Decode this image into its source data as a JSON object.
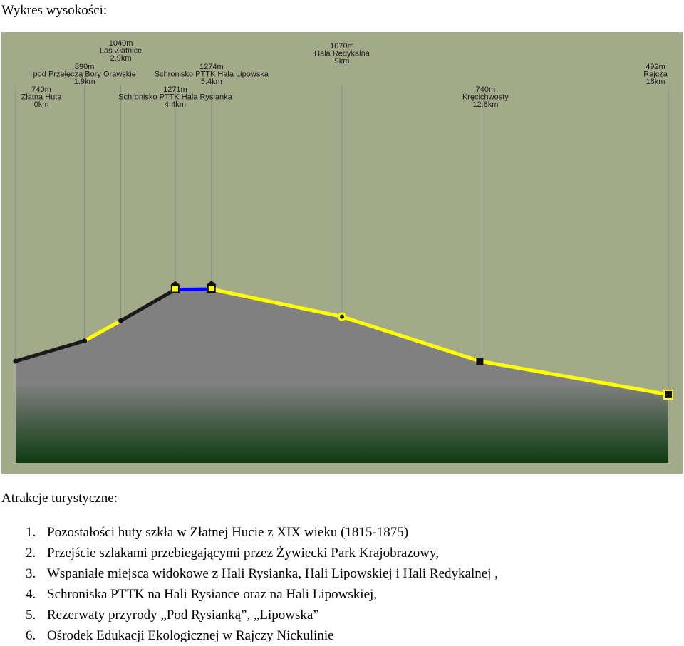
{
  "heading": "Wykres wysokości:",
  "section_title": "Atrakcje turystyczne:",
  "colors": {
    "background": "#a3aa8a",
    "terrain_top": "#808080",
    "terrain_bottom": "#0e3a10",
    "trail_yellow": "#ffff00",
    "trail_black": "#1a1a1a",
    "trail_blue": "#0000ff",
    "guide_line": "#8a8f80"
  },
  "chart_data": {
    "type": "area",
    "x_unit": "km",
    "y_unit": "m",
    "points": [
      {
        "name": "Złatna Huta",
        "elevation_label": "740m",
        "distance_label": "0km",
        "km": 0,
        "m": 740,
        "marker": "dot"
      },
      {
        "name": "pod Przełęczą Bory Orawskie",
        "elevation_label": "890m",
        "distance_label": "1.9km",
        "km": 1.9,
        "m": 890,
        "marker": "dot"
      },
      {
        "name": "Las Złatnice",
        "elevation_label": "1040m",
        "distance_label": "2.9km",
        "km": 2.9,
        "m": 1040,
        "marker": "dot"
      },
      {
        "name": "Schronisko PTTK Hala Rysianka",
        "elevation_label": "1271m",
        "distance_label": "4.4km",
        "km": 4.4,
        "m": 1271,
        "marker": "hut"
      },
      {
        "name": "Schronisko PTTK Hala Lipowska",
        "elevation_label": "1274m",
        "distance_label": "5.4km",
        "km": 5.4,
        "m": 1274,
        "marker": "hut"
      },
      {
        "name": "Hala Redykalna",
        "elevation_label": "1070m",
        "distance_label": "9km",
        "km": 9,
        "m": 1070,
        "marker": "viewpoint"
      },
      {
        "name": "Kręcichwosty",
        "elevation_label": "740m",
        "distance_label": "12.8km",
        "km": 12.8,
        "m": 740,
        "marker": "square"
      },
      {
        "name": "Rajcza",
        "elevation_label": "492m",
        "distance_label": "18km",
        "km": 18,
        "m": 492,
        "marker": "end"
      }
    ],
    "segments": [
      "black",
      "yellow",
      "black",
      "blue",
      "yellow",
      "yellow",
      "yellow"
    ]
  },
  "attractions": [
    {
      "number": "1.",
      "text": "Pozostałości huty szkła w Złatnej Hucie z XIX wieku (1815-1875)"
    },
    {
      "number": "2.",
      "text": "Przejście szlakami przebiegającymi przez Żywiecki Park Krajobrazowy,"
    },
    {
      "number": "3.",
      "text": "Wspaniałe miejsca widokowe z Hali Rysianka, Hali Lipowskiej i Hali Redykalnej ,"
    },
    {
      "number": "4.",
      "text": "Schroniska PTTK na Hali Rysiance oraz na Hali Lipowskiej,"
    },
    {
      "number": "5.",
      "text": "Rezerwaty przyrody „Pod Rysianką”, „Lipowska”"
    },
    {
      "number": "6.",
      "text": "Ośrodek Edukacji Ekologicznej w Rajczy Nickulinie"
    }
  ]
}
